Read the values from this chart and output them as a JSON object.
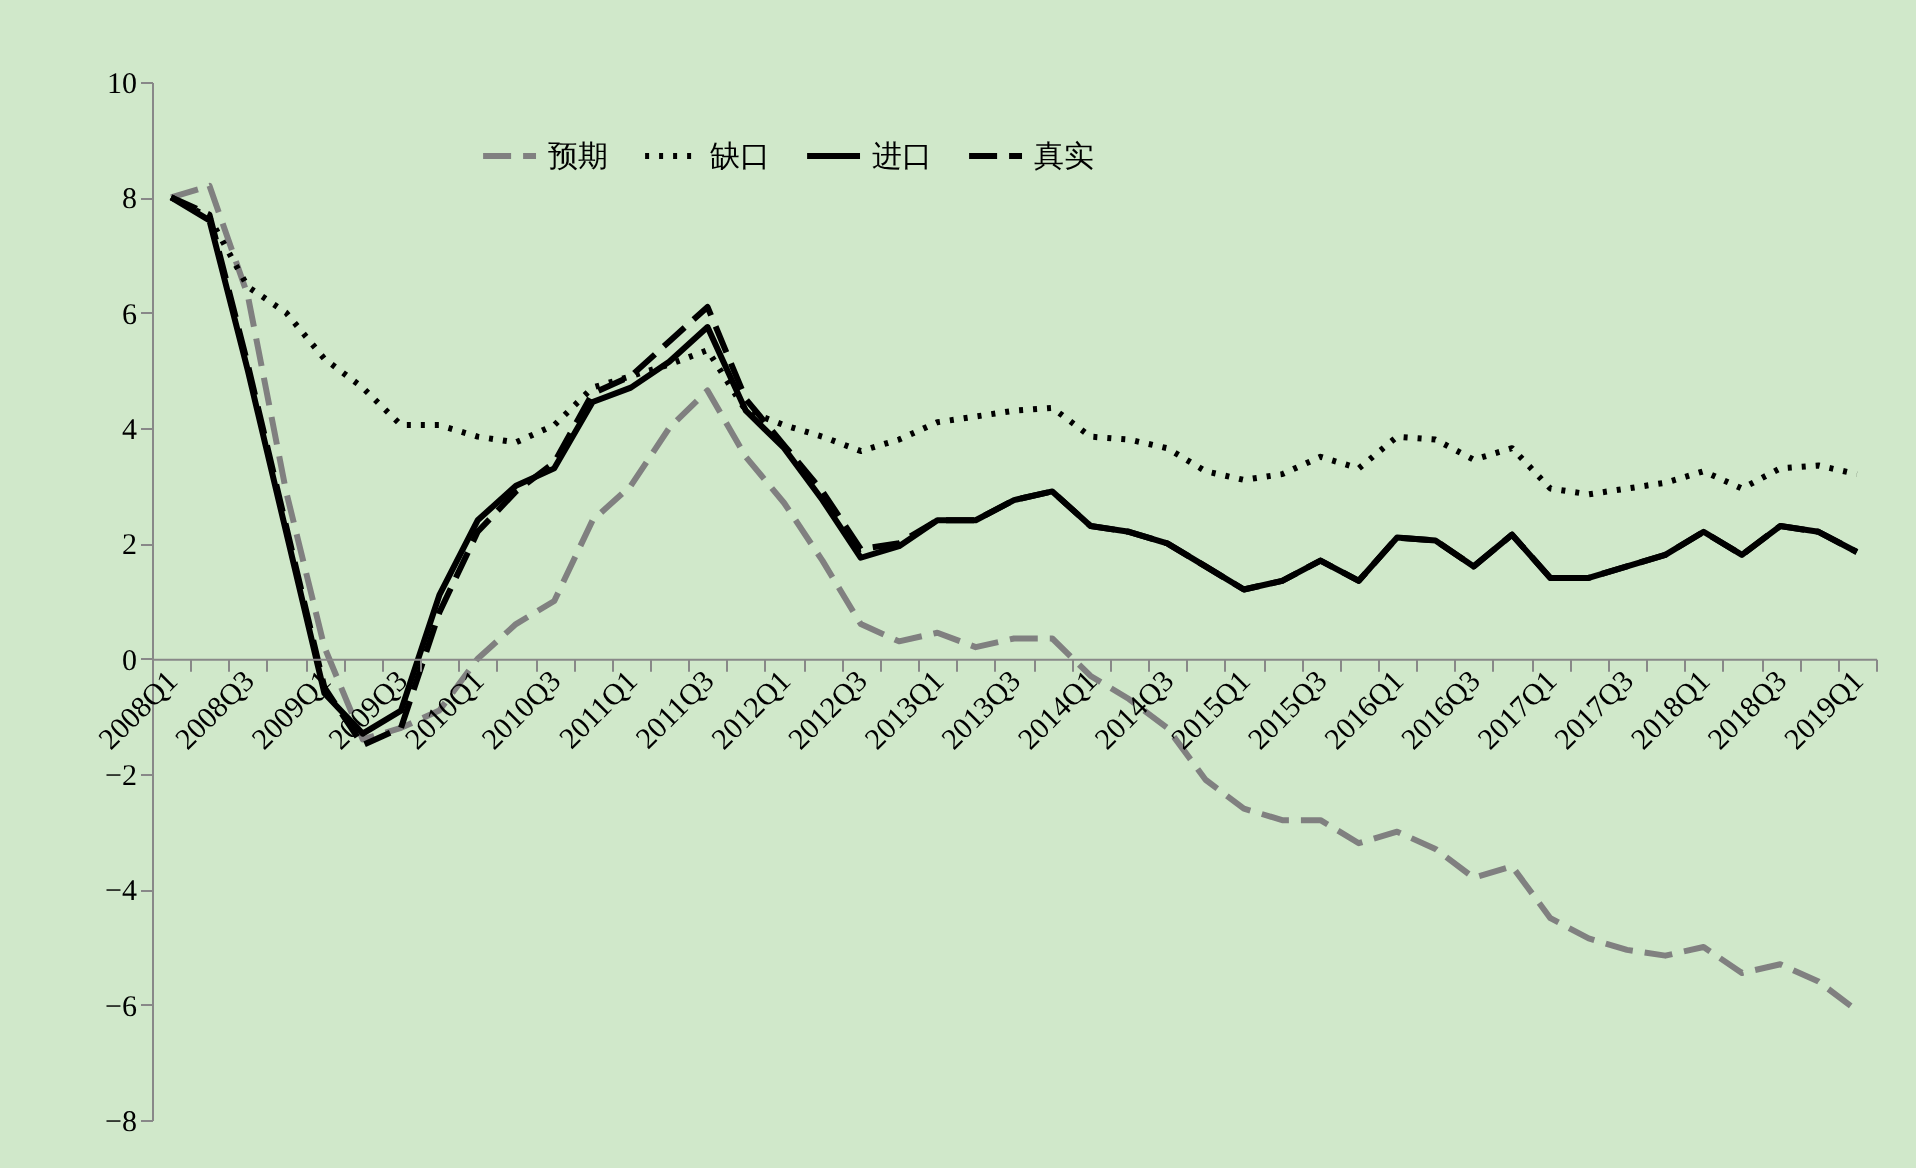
{
  "chart_data": {
    "type": "line",
    "categories": [
      "2008Q1",
      null,
      "2008Q3",
      null,
      "2009Q1",
      null,
      "2009Q3",
      null,
      "2010Q1",
      null,
      "2010Q3",
      null,
      "2011Q1",
      null,
      "2011Q3",
      null,
      "2012Q1",
      null,
      "2012Q3",
      null,
      "2013Q1",
      null,
      "2013Q3",
      null,
      "2014Q1",
      null,
      "2014Q3",
      null,
      "2015Q1",
      null,
      "2015Q3",
      null,
      "2016Q1",
      null,
      "2016Q3",
      null,
      "2017Q1",
      null,
      "2017Q3",
      null,
      "2018Q1",
      null,
      "2018Q3",
      null,
      "2019Q1"
    ],
    "series": [
      {
        "name": "预期",
        "color": "#808080",
        "line_style": "dashed",
        "values": [
          8.0,
          8.2,
          6.3,
          2.9,
          0.2,
          -1.4,
          -1.2,
          -0.9,
          0.0,
          0.6,
          1.0,
          2.4,
          3.0,
          4.0,
          4.65,
          3.5,
          2.7,
          1.7,
          0.6,
          0.3,
          0.45,
          0.2,
          0.35,
          0.35,
          -0.3,
          -0.7,
          -1.2,
          -2.1,
          -2.6,
          -2.8,
          -2.8,
          -3.2,
          -3.0,
          -3.3,
          -3.8,
          -3.6,
          -4.5,
          -4.85,
          -5.05,
          -5.15,
          -5.0,
          -5.45,
          -5.3,
          -5.6,
          -6.1
        ]
      },
      {
        "name": "缺口",
        "color": "#000000",
        "line_style": "dotted",
        "values": [
          8.0,
          7.65,
          6.45,
          6.0,
          5.2,
          4.7,
          4.05,
          4.05,
          3.85,
          3.75,
          4.05,
          4.7,
          4.9,
          5.1,
          5.35,
          4.3,
          4.05,
          3.85,
          3.6,
          3.8,
          4.1,
          4.2,
          4.3,
          4.35,
          3.85,
          3.8,
          3.65,
          3.25,
          3.1,
          3.2,
          3.5,
          3.3,
          3.85,
          3.8,
          3.45,
          3.65,
          2.95,
          2.85,
          2.95,
          3.05,
          3.25,
          2.95,
          3.3,
          3.35,
          3.2
        ]
      },
      {
        "name": "进口",
        "color": "#000000",
        "line_style": "solid",
        "values": [
          8.0,
          7.6,
          5.0,
          2.2,
          -0.6,
          -1.3,
          -0.9,
          1.1,
          2.4,
          3.0,
          3.3,
          4.45,
          4.7,
          5.15,
          5.75,
          4.3,
          3.65,
          2.75,
          1.75,
          1.95,
          2.4,
          2.4,
          2.75,
          2.9,
          2.3,
          2.2,
          2.0,
          1.6,
          1.2,
          1.35,
          1.7,
          1.35,
          2.1,
          2.05,
          1.6,
          2.15,
          1.4,
          1.4,
          1.6,
          1.8,
          2.2,
          1.8,
          2.3,
          2.2,
          1.85
        ]
      },
      {
        "name": "真实",
        "color": "#000000",
        "line_style": "dashed",
        "values": [
          8.0,
          7.7,
          5.1,
          2.3,
          -0.5,
          -1.5,
          -1.2,
          0.8,
          2.2,
          2.9,
          3.4,
          4.6,
          4.9,
          5.5,
          6.1,
          4.5,
          3.7,
          2.9,
          1.9,
          2.0,
          2.4,
          2.4,
          2.75,
          2.9,
          2.3,
          2.2,
          2.0,
          1.6,
          1.2,
          1.35,
          1.7,
          1.35,
          2.1,
          2.05,
          1.6,
          2.15,
          1.4,
          1.4,
          1.6,
          1.8,
          2.2,
          1.8,
          2.3,
          2.2,
          1.85
        ]
      }
    ],
    "ylim": [
      -8,
      10
    ],
    "yticks": [
      -8,
      -6,
      -4,
      -2,
      0,
      2,
      4,
      6,
      8,
      10
    ],
    "legend": "top",
    "grid": false,
    "marker": "none"
  }
}
